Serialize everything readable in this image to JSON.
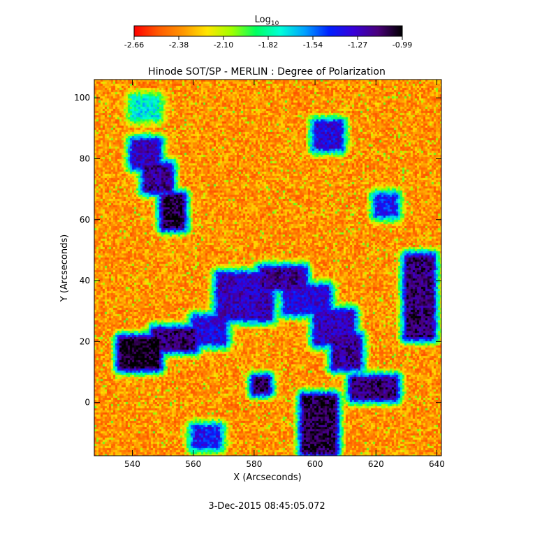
{
  "chart_data": {
    "type": "heatmap",
    "title": "Hinode SOT/SP - MERLIN : Degree of Polarization",
    "xlabel": "X (Arcseconds)",
    "ylabel": "Y (Arcseconds)",
    "xlim": [
      527.5,
      641.5
    ],
    "ylim": [
      -17.5,
      106
    ],
    "x_ticks": [
      540,
      560,
      580,
      600,
      620,
      640
    ],
    "y_ticks": [
      0,
      20,
      40,
      60,
      80,
      100
    ],
    "colorbar": {
      "label": "Log",
      "label_sub": "10",
      "range": [
        -2.66,
        -0.99
      ],
      "ticks": [
        "-2.66",
        "-2.38",
        "-2.10",
        "-1.82",
        "-1.54",
        "-1.27",
        "-0.99"
      ],
      "colors": [
        "#ff0000",
        "#ff5a00",
        "#ff9600",
        "#ffe600",
        "#a0ff00",
        "#00ff60",
        "#00ffd8",
        "#00a0ff",
        "#0020ff",
        "#3800d8",
        "#4a007a",
        "#000000"
      ]
    },
    "timestamp": "3-Dec-2015 08:45:05.072",
    "scale": "log10",
    "grid": false,
    "network_features": [
      {
        "x0": 536,
        "y0": 12,
        "x1": 548,
        "y1": 21,
        "level": 1.0
      },
      {
        "x0": 547,
        "y0": 18,
        "x1": 560,
        "y1": 24,
        "level": 0.9
      },
      {
        "x0": 560,
        "y0": 20,
        "x1": 570,
        "y1": 28,
        "level": 0.75
      },
      {
        "x0": 568,
        "y0": 28,
        "x1": 585,
        "y1": 42,
        "level": 0.8
      },
      {
        "x0": 582,
        "y0": 38,
        "x1": 596,
        "y1": 44,
        "level": 0.85
      },
      {
        "x0": 590,
        "y0": 30,
        "x1": 604,
        "y1": 38,
        "level": 0.75
      },
      {
        "x0": 600,
        "y0": 20,
        "x1": 612,
        "y1": 30,
        "level": 0.8
      },
      {
        "x0": 606,
        "y0": 12,
        "x1": 614,
        "y1": 22,
        "level": 0.85
      },
      {
        "x0": 612,
        "y0": 2,
        "x1": 626,
        "y1": 8,
        "level": 0.9
      },
      {
        "x0": 596,
        "y0": -16,
        "x1": 606,
        "y1": 2,
        "level": 0.95
      },
      {
        "x0": 540,
        "y0": 78,
        "x1": 548,
        "y1": 86,
        "level": 0.8
      },
      {
        "x0": 544,
        "y0": 70,
        "x1": 552,
        "y1": 78,
        "level": 0.85
      },
      {
        "x0": 550,
        "y0": 58,
        "x1": 556,
        "y1": 68,
        "level": 0.95
      },
      {
        "x0": 630,
        "y0": 22,
        "x1": 638,
        "y1": 48,
        "level": 0.9
      },
      {
        "x0": 600,
        "y0": 84,
        "x1": 608,
        "y1": 92,
        "level": 0.75
      },
      {
        "x0": 580,
        "y0": 4,
        "x1": 584,
        "y1": 8,
        "level": 0.95
      },
      {
        "x0": 620,
        "y0": 62,
        "x1": 626,
        "y1": 68,
        "level": 0.7
      },
      {
        "x0": 540,
        "y0": 94,
        "x1": 548,
        "y1": 100,
        "level": 0.45
      },
      {
        "x0": 560,
        "y0": -14,
        "x1": 568,
        "y1": -8,
        "level": 0.7
      }
    ]
  }
}
